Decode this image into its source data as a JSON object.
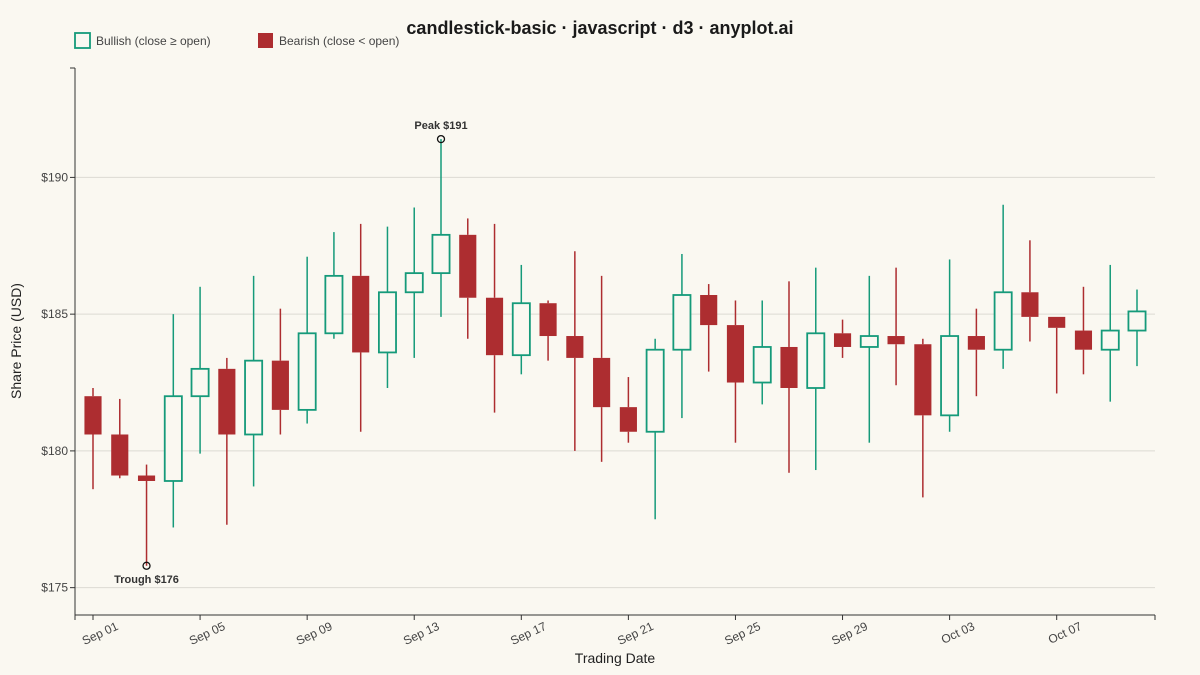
{
  "chart_data": {
    "type": "candlestick",
    "title": "candlestick-basic · javascript · d3 · anyplot.ai",
    "xlabel": "Trading Date",
    "ylabel": "Share Price (USD)",
    "ylim": [
      174,
      194
    ],
    "yticks": [
      175,
      180,
      185,
      190
    ],
    "ytick_labels": [
      "$175",
      "$180",
      "$185",
      "$190"
    ],
    "grid": true,
    "legend_position": "top-left",
    "colors": {
      "bullish": "#159a7a",
      "bearish": "#ad2d30",
      "background": "#faf8f1"
    },
    "legend": [
      {
        "key": "bullish",
        "label": "Bullish (close ≥ open)"
      },
      {
        "key": "bearish",
        "label": "Bearish (close < open)"
      }
    ],
    "xtick_labels": [
      "Sep 01",
      "Sep 05",
      "Sep 09",
      "Sep 13",
      "Sep 17",
      "Sep 21",
      "Sep 25",
      "Sep 29",
      "Oct 03",
      "Oct 07"
    ],
    "candles": [
      {
        "date": "Sep 01",
        "open": 182.0,
        "high": 182.3,
        "low": 178.6,
        "close": 180.6
      },
      {
        "date": "Sep 02",
        "open": 180.6,
        "high": 181.9,
        "low": 179.0,
        "close": 179.1
      },
      {
        "date": "Sep 03",
        "open": 179.1,
        "high": 179.5,
        "low": 175.8,
        "close": 178.9
      },
      {
        "date": "Sep 04",
        "open": 178.9,
        "high": 185.0,
        "low": 177.2,
        "close": 182.0
      },
      {
        "date": "Sep 05",
        "open": 182.0,
        "high": 186.0,
        "low": 179.9,
        "close": 183.0
      },
      {
        "date": "Sep 06",
        "open": 183.0,
        "high": 183.4,
        "low": 177.3,
        "close": 180.6
      },
      {
        "date": "Sep 07",
        "open": 180.6,
        "high": 186.4,
        "low": 178.7,
        "close": 183.3
      },
      {
        "date": "Sep 08",
        "open": 183.3,
        "high": 185.2,
        "low": 180.6,
        "close": 181.5
      },
      {
        "date": "Sep 09",
        "open": 181.5,
        "high": 187.1,
        "low": 181.0,
        "close": 184.3
      },
      {
        "date": "Sep 10",
        "open": 184.3,
        "high": 188.0,
        "low": 184.1,
        "close": 186.4
      },
      {
        "date": "Sep 11",
        "open": 186.4,
        "high": 188.3,
        "low": 180.7,
        "close": 183.6
      },
      {
        "date": "Sep 12",
        "open": 183.6,
        "high": 188.2,
        "low": 182.3,
        "close": 185.8
      },
      {
        "date": "Sep 13",
        "open": 185.8,
        "high": 188.9,
        "low": 183.4,
        "close": 186.5
      },
      {
        "date": "Sep 14",
        "open": 186.5,
        "high": 191.4,
        "low": 184.9,
        "close": 187.9
      },
      {
        "date": "Sep 15",
        "open": 187.9,
        "high": 188.5,
        "low": 184.1,
        "close": 185.6
      },
      {
        "date": "Sep 16",
        "open": 185.6,
        "high": 188.3,
        "low": 181.4,
        "close": 183.5
      },
      {
        "date": "Sep 17",
        "open": 183.5,
        "high": 186.8,
        "low": 182.8,
        "close": 185.4
      },
      {
        "date": "Sep 18",
        "open": 185.4,
        "high": 185.5,
        "low": 183.3,
        "close": 184.2
      },
      {
        "date": "Sep 19",
        "open": 184.2,
        "high": 187.3,
        "low": 180.0,
        "close": 183.4
      },
      {
        "date": "Sep 20",
        "open": 183.4,
        "high": 186.4,
        "low": 179.6,
        "close": 181.6
      },
      {
        "date": "Sep 21",
        "open": 181.6,
        "high": 182.7,
        "low": 180.3,
        "close": 180.7
      },
      {
        "date": "Sep 22",
        "open": 180.7,
        "high": 184.1,
        "low": 177.5,
        "close": 183.7
      },
      {
        "date": "Sep 23",
        "open": 183.7,
        "high": 187.2,
        "low": 181.2,
        "close": 185.7
      },
      {
        "date": "Sep 24",
        "open": 185.7,
        "high": 186.1,
        "low": 182.9,
        "close": 184.6
      },
      {
        "date": "Sep 25",
        "open": 184.6,
        "high": 185.5,
        "low": 180.3,
        "close": 182.5
      },
      {
        "date": "Sep 26",
        "open": 182.5,
        "high": 185.5,
        "low": 181.7,
        "close": 183.8
      },
      {
        "date": "Sep 27",
        "open": 183.8,
        "high": 186.2,
        "low": 179.2,
        "close": 182.3
      },
      {
        "date": "Sep 28",
        "open": 182.3,
        "high": 186.7,
        "low": 179.3,
        "close": 184.3
      },
      {
        "date": "Sep 29",
        "open": 184.3,
        "high": 184.8,
        "low": 183.4,
        "close": 183.8
      },
      {
        "date": "Sep 30",
        "open": 183.8,
        "high": 186.4,
        "low": 180.3,
        "close": 184.2
      },
      {
        "date": "Oct 01",
        "open": 184.2,
        "high": 186.7,
        "low": 182.4,
        "close": 183.9
      },
      {
        "date": "Oct 02",
        "open": 183.9,
        "high": 184.1,
        "low": 178.3,
        "close": 181.3
      },
      {
        "date": "Oct 03",
        "open": 181.3,
        "high": 187.0,
        "low": 180.7,
        "close": 184.2
      },
      {
        "date": "Oct 04",
        "open": 184.2,
        "high": 185.2,
        "low": 182.0,
        "close": 183.7
      },
      {
        "date": "Oct 05",
        "open": 183.7,
        "high": 189.0,
        "low": 183.0,
        "close": 185.8
      },
      {
        "date": "Oct 06",
        "open": 185.8,
        "high": 187.7,
        "low": 184.0,
        "close": 184.9
      },
      {
        "date": "Oct 07",
        "open": 184.9,
        "high": 184.9,
        "low": 182.1,
        "close": 184.5
      },
      {
        "date": "Oct 08",
        "open": 184.4,
        "high": 186.0,
        "low": 182.8,
        "close": 183.7
      },
      {
        "date": "Oct 09",
        "open": 183.7,
        "high": 186.8,
        "low": 181.8,
        "close": 184.4
      },
      {
        "date": "Oct 10",
        "open": 184.4,
        "high": 185.9,
        "low": 183.1,
        "close": 185.1
      }
    ],
    "annotations": [
      {
        "label": "Peak $191",
        "date": "Sep 14",
        "value": 191.4,
        "placement": "above"
      },
      {
        "label": "Trough $176",
        "date": "Sep 03",
        "value": 175.8,
        "placement": "below"
      }
    ]
  }
}
